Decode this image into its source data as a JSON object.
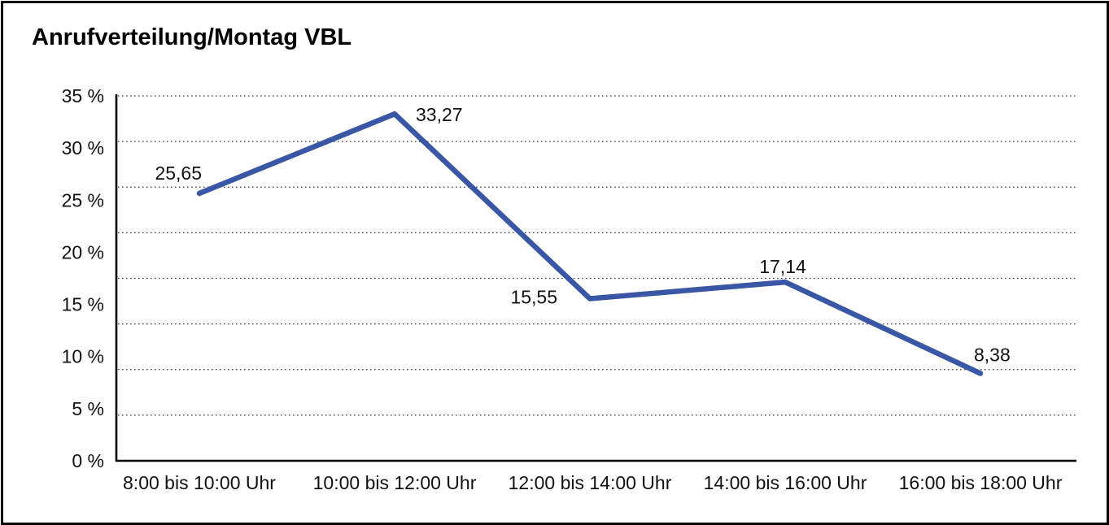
{
  "chart_data": {
    "type": "line",
    "title": "Anrufverteilung/Montag VBL",
    "categories": [
      "8:00 bis 10:00 Uhr",
      "10:00 bis 12:00 Uhr",
      "12:00 bis 14:00 Uhr",
      "14:00 bis 16:00 Uhr",
      "16:00 bis 18:00 Uhr"
    ],
    "values": [
      25.65,
      33.27,
      15.55,
      17.14,
      8.38
    ],
    "value_labels": [
      "25,65",
      "33,27",
      "15,55",
      "17,14",
      "8,38"
    ],
    "value_label_positions": [
      "above-left",
      "right-of-peak",
      "left",
      "above",
      "above-right"
    ],
    "y_tick_labels": [
      "35 %",
      "30 %",
      "25 %",
      "20 %",
      "15 %",
      "10 %",
      "5 %",
      "0 %"
    ],
    "ylim": [
      0,
      35
    ],
    "xlabel": "",
    "ylabel": "",
    "grid": "horizontal-dotted",
    "legend": "none",
    "colors": {
      "line": "#3A57A5",
      "text": "#111111",
      "gridline": "#3a3a3a",
      "axis": "#000000",
      "frame_border": "#000000",
      "background": "#ffffff"
    }
  }
}
